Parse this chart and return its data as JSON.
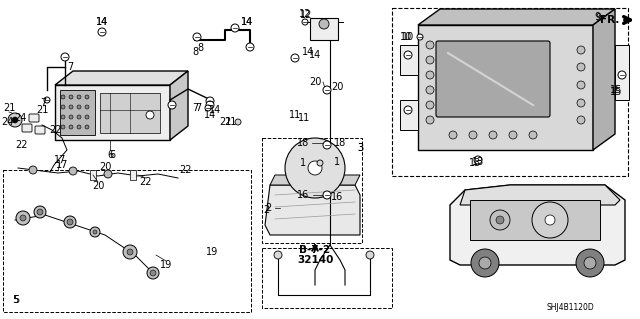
{
  "bg_color": "#ffffff",
  "page_ref_line1": "B-7-2",
  "page_ref_line2": "32140",
  "direction_label": "FR.",
  "image_id": "SHJ4B1120D",
  "label_fontsize": 7,
  "label_color": "#000000",
  "line_color": "#000000",
  "gray_fill": "#d8d8d8",
  "light_gray": "#eeeeee"
}
